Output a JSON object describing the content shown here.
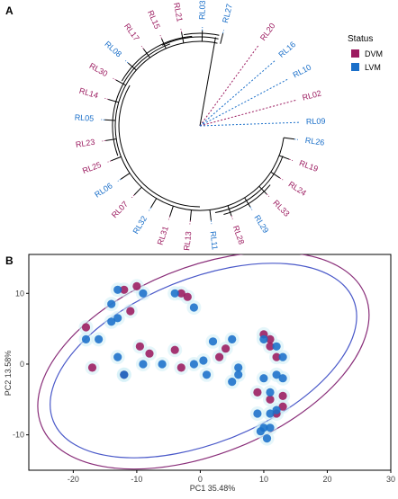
{
  "panels": {
    "a": "A",
    "b": "B"
  },
  "legend": {
    "title": "Status",
    "items": [
      {
        "label": "DVM",
        "color": "#9b1a5f"
      },
      {
        "label": "LVM",
        "color": "#1a6fc9"
      }
    ]
  },
  "tree": {
    "leaves": [
      {
        "label": "RL20",
        "group": "DVM"
      },
      {
        "label": "RL16",
        "group": "LVM"
      },
      {
        "label": "RL10",
        "group": "LVM"
      },
      {
        "label": "RL02",
        "group": "DVM"
      },
      {
        "label": "RL09",
        "group": "LVM"
      },
      {
        "label": "RL26",
        "group": "LVM"
      },
      {
        "label": "RL19",
        "group": "DVM"
      },
      {
        "label": "RL24",
        "group": "DVM"
      },
      {
        "label": "RL33",
        "group": "DVM"
      },
      {
        "label": "RL29",
        "group": "LVM"
      },
      {
        "label": "RL28",
        "group": "DVM"
      },
      {
        "label": "RL11",
        "group": "LVM"
      },
      {
        "label": "RL13",
        "group": "DVM"
      },
      {
        "label": "RL31",
        "group": "DVM"
      },
      {
        "label": "RL32",
        "group": "LVM"
      },
      {
        "label": "RL07",
        "group": "DVM"
      },
      {
        "label": "RL06",
        "group": "LVM"
      },
      {
        "label": "RL25",
        "group": "DVM"
      },
      {
        "label": "RL23",
        "group": "DVM"
      },
      {
        "label": "RL05",
        "group": "LVM"
      },
      {
        "label": "RL14",
        "group": "DVM"
      },
      {
        "label": "RL30",
        "group": "DVM"
      },
      {
        "label": "RL08",
        "group": "LVM"
      },
      {
        "label": "RL17",
        "group": "DVM"
      },
      {
        "label": "RL15",
        "group": "DVM"
      },
      {
        "label": "RL21",
        "group": "DVM"
      },
      {
        "label": "RL03",
        "group": "LVM"
      },
      {
        "label": "RL27",
        "group": "LVM"
      }
    ]
  },
  "chart_data": {
    "type": "scatter",
    "xlabel": "PC1 35.48%",
    "ylabel": "PC2 13.58%",
    "xlim": [
      -27,
      30
    ],
    "ylim": [
      -15,
      15.5
    ],
    "xticks": [
      -20,
      -10,
      0,
      10,
      20,
      30
    ],
    "yticks": [
      -10,
      0,
      10
    ],
    "grid": false,
    "legend_position": "right",
    "series": [
      {
        "name": "DVM",
        "color": "#9b1a5f",
        "points": [
          [
            -12,
            10.5
          ],
          [
            -10,
            11
          ],
          [
            -3,
            10
          ],
          [
            -2,
            9.5
          ],
          [
            -18,
            5.2
          ],
          [
            -11,
            7.5
          ],
          [
            -9.5,
            2.5
          ],
          [
            -8,
            1.5
          ],
          [
            -17,
            -0.5
          ],
          [
            -12,
            -1.5
          ],
          [
            -4,
            2
          ],
          [
            -3,
            -0.5
          ],
          [
            3,
            1
          ],
          [
            4,
            2.2
          ],
          [
            10,
            4.2
          ],
          [
            11,
            2.5
          ],
          [
            11,
            3.5
          ],
          [
            12,
            1
          ],
          [
            9,
            -4
          ],
          [
            11,
            -5
          ],
          [
            13,
            -4.5
          ],
          [
            12,
            -7
          ],
          [
            13,
            -6
          ]
        ]
      },
      {
        "name": "LVM",
        "color": "#1a6fc9",
        "points": [
          [
            -13,
            10.5
          ],
          [
            -14,
            8.5
          ],
          [
            -9,
            10
          ],
          [
            -4,
            10
          ],
          [
            -1,
            8
          ],
          [
            -13,
            6.5
          ],
          [
            -14,
            6
          ],
          [
            -18,
            3.5
          ],
          [
            -16,
            3.5
          ],
          [
            -13,
            1
          ],
          [
            -12,
            -1.5
          ],
          [
            -9,
            0
          ],
          [
            -6,
            0
          ],
          [
            -1,
            0
          ],
          [
            0.5,
            0.5
          ],
          [
            2,
            3.2
          ],
          [
            1,
            -1.5
          ],
          [
            5,
            -2.5
          ],
          [
            6,
            -0.5
          ],
          [
            5,
            3.5
          ],
          [
            6,
            -1.5
          ],
          [
            10,
            3.5
          ],
          [
            12,
            2.5
          ],
          [
            13,
            1
          ],
          [
            12,
            -1.5
          ],
          [
            10,
            -2
          ],
          [
            13,
            -2
          ],
          [
            11,
            -4
          ],
          [
            9,
            -7
          ],
          [
            10,
            -9
          ],
          [
            10.5,
            -10.5
          ],
          [
            11,
            -9
          ],
          [
            9.5,
            -9.5
          ],
          [
            11,
            -7
          ],
          [
            12,
            -6.5
          ]
        ]
      }
    ],
    "ellipses": [
      {
        "series": "DVM",
        "color": "#8a2f7a",
        "cx": 0.5,
        "cy": 0.5,
        "rx": 27.5,
        "ry": 13.2,
        "angle_deg": -22
      },
      {
        "series": "LVM",
        "color": "#4a59c9",
        "cx": 0.5,
        "cy": 0.5,
        "rx": 25.5,
        "ry": 11.6,
        "angle_deg": -22
      }
    ]
  }
}
